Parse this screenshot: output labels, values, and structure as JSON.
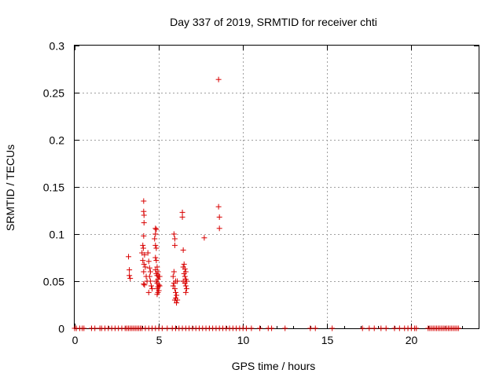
{
  "chart_data": {
    "type": "scatter",
    "title": "Day 337 of 2019, SRMTID for receiver chti",
    "xlabel": "GPS time / hours",
    "ylabel": "SRMTID / TECUs",
    "xlim": [
      0,
      24
    ],
    "ylim": [
      0,
      0.3
    ],
    "x_ticks": [
      "0",
      "5",
      "10",
      "15",
      "20"
    ],
    "y_ticks": [
      "0",
      "0.05",
      "0.1",
      "0.15",
      "0.2",
      "0.25",
      "0.3"
    ],
    "grid": true,
    "marker": "+",
    "color": "#d80000",
    "series": [
      {
        "points": [
          [
            3.2,
            0.076
          ],
          [
            3.25,
            0.062
          ],
          [
            3.25,
            0.056
          ],
          [
            3.3,
            0.053
          ],
          [
            4.1,
            0.135
          ],
          [
            4.1,
            0.124
          ],
          [
            4.12,
            0.12
          ],
          [
            4.12,
            0.112
          ],
          [
            4.1,
            0.098
          ],
          [
            4.05,
            0.088
          ],
          [
            4.08,
            0.085
          ],
          [
            4.0,
            0.08
          ],
          [
            4.15,
            0.078
          ],
          [
            4.05,
            0.072
          ],
          [
            4.12,
            0.068
          ],
          [
            4.2,
            0.065
          ],
          [
            4.1,
            0.06
          ],
          [
            4.25,
            0.055
          ],
          [
            4.3,
            0.05
          ],
          [
            4.1,
            0.047
          ],
          [
            4.15,
            0.046
          ],
          [
            4.35,
            0.08
          ],
          [
            4.4,
            0.071
          ],
          [
            4.45,
            0.064
          ],
          [
            4.5,
            0.06
          ],
          [
            4.45,
            0.055
          ],
          [
            4.5,
            0.05
          ],
          [
            4.55,
            0.045
          ],
          [
            4.6,
            0.042
          ],
          [
            4.4,
            0.038
          ],
          [
            4.8,
            0.106
          ],
          [
            4.85,
            0.105
          ],
          [
            4.8,
            0.1
          ],
          [
            4.75,
            0.095
          ],
          [
            4.8,
            0.088
          ],
          [
            4.85,
            0.085
          ],
          [
            4.8,
            0.075
          ],
          [
            4.85,
            0.072
          ],
          [
            4.9,
            0.065
          ],
          [
            4.8,
            0.062
          ],
          [
            4.95,
            0.06
          ],
          [
            4.85,
            0.058
          ],
          [
            4.9,
            0.056
          ],
          [
            5.0,
            0.055
          ],
          [
            4.95,
            0.052
          ],
          [
            4.85,
            0.05
          ],
          [
            4.9,
            0.048
          ],
          [
            5.0,
            0.046
          ],
          [
            4.95,
            0.044
          ],
          [
            4.9,
            0.042
          ],
          [
            5.0,
            0.04
          ],
          [
            4.95,
            0.038
          ],
          [
            4.9,
            0.036
          ],
          [
            5.05,
            0.055
          ],
          [
            5.05,
            0.045
          ],
          [
            5.9,
            0.1
          ],
          [
            5.95,
            0.095
          ],
          [
            5.95,
            0.088
          ],
          [
            5.9,
            0.06
          ],
          [
            5.85,
            0.055
          ],
          [
            6.0,
            0.05
          ],
          [
            5.9,
            0.048
          ],
          [
            5.85,
            0.045
          ],
          [
            5.95,
            0.042
          ],
          [
            6.0,
            0.038
          ],
          [
            6.05,
            0.035
          ],
          [
            6.0,
            0.032
          ],
          [
            5.95,
            0.03
          ],
          [
            6.1,
            0.03
          ],
          [
            6.05,
            0.027
          ],
          [
            6.1,
            0.05
          ],
          [
            6.4,
            0.123
          ],
          [
            6.4,
            0.118
          ],
          [
            6.45,
            0.083
          ],
          [
            6.5,
            0.068
          ],
          [
            6.45,
            0.065
          ],
          [
            6.55,
            0.063
          ],
          [
            6.6,
            0.06
          ],
          [
            6.5,
            0.058
          ],
          [
            6.55,
            0.055
          ],
          [
            6.6,
            0.052
          ],
          [
            6.45,
            0.05
          ],
          [
            6.65,
            0.05
          ],
          [
            6.55,
            0.048
          ],
          [
            6.6,
            0.045
          ],
          [
            6.65,
            0.042
          ],
          [
            6.6,
            0.038
          ],
          [
            7.7,
            0.096
          ],
          [
            8.55,
            0.264
          ],
          [
            8.55,
            0.129
          ],
          [
            8.6,
            0.118
          ],
          [
            8.6,
            0.106
          ]
        ]
      },
      {
        "points": [
          [
            0.0,
            0
          ],
          [
            0.1,
            0
          ],
          [
            0.3,
            0
          ],
          [
            0.45,
            0
          ],
          [
            0.55,
            0
          ],
          [
            1.0,
            0
          ],
          [
            1.2,
            0
          ],
          [
            1.5,
            0
          ],
          [
            1.6,
            0
          ],
          [
            1.8,
            0
          ],
          [
            2.0,
            0
          ],
          [
            2.2,
            0
          ],
          [
            2.4,
            0
          ],
          [
            2.6,
            0
          ],
          [
            2.8,
            0
          ],
          [
            3.0,
            0
          ],
          [
            3.1,
            0
          ],
          [
            3.2,
            0
          ],
          [
            3.3,
            0
          ],
          [
            3.4,
            0
          ],
          [
            3.5,
            0
          ],
          [
            3.6,
            0
          ],
          [
            3.7,
            0
          ],
          [
            3.8,
            0
          ],
          [
            3.9,
            0
          ],
          [
            4.0,
            0
          ],
          [
            4.2,
            0
          ],
          [
            4.4,
            0
          ],
          [
            4.6,
            0
          ],
          [
            4.8,
            0
          ],
          [
            5.0,
            0
          ],
          [
            5.2,
            0
          ],
          [
            5.5,
            0
          ],
          [
            5.8,
            0
          ],
          [
            6.0,
            0
          ],
          [
            6.2,
            0
          ],
          [
            6.4,
            0
          ],
          [
            6.6,
            0
          ],
          [
            6.8,
            0
          ],
          [
            7.0,
            0
          ],
          [
            7.2,
            0
          ],
          [
            7.4,
            0
          ],
          [
            7.6,
            0
          ],
          [
            7.8,
            0
          ],
          [
            8.0,
            0
          ],
          [
            8.2,
            0
          ],
          [
            8.4,
            0
          ],
          [
            8.6,
            0
          ],
          [
            8.8,
            0
          ],
          [
            9.0,
            0
          ],
          [
            9.2,
            0
          ],
          [
            9.4,
            0
          ],
          [
            9.6,
            0
          ],
          [
            9.8,
            0
          ],
          [
            10.0,
            0
          ],
          [
            10.2,
            0
          ],
          [
            10.5,
            0
          ],
          [
            11.0,
            0
          ],
          [
            11.5,
            0
          ],
          [
            11.7,
            0
          ],
          [
            12.5,
            0
          ],
          [
            14.0,
            0
          ],
          [
            14.3,
            0
          ],
          [
            15.3,
            0
          ],
          [
            17.1,
            0
          ],
          [
            17.5,
            0
          ],
          [
            17.8,
            0
          ],
          [
            18.2,
            0
          ],
          [
            18.5,
            0
          ],
          [
            19.0,
            0
          ],
          [
            19.3,
            0
          ],
          [
            19.6,
            0
          ],
          [
            19.8,
            0
          ],
          [
            20.0,
            0
          ],
          [
            20.2,
            0
          ],
          [
            20.3,
            0
          ],
          [
            21.0,
            0
          ],
          [
            21.1,
            0
          ],
          [
            21.2,
            0
          ],
          [
            21.3,
            0
          ],
          [
            21.4,
            0
          ],
          [
            21.5,
            0
          ],
          [
            21.6,
            0
          ],
          [
            21.7,
            0
          ],
          [
            21.8,
            0
          ],
          [
            21.9,
            0
          ],
          [
            22.0,
            0
          ],
          [
            22.1,
            0
          ],
          [
            22.2,
            0
          ],
          [
            22.3,
            0
          ],
          [
            22.4,
            0
          ],
          [
            22.5,
            0
          ],
          [
            22.6,
            0
          ],
          [
            22.7,
            0
          ],
          [
            22.8,
            0
          ]
        ]
      }
    ]
  }
}
